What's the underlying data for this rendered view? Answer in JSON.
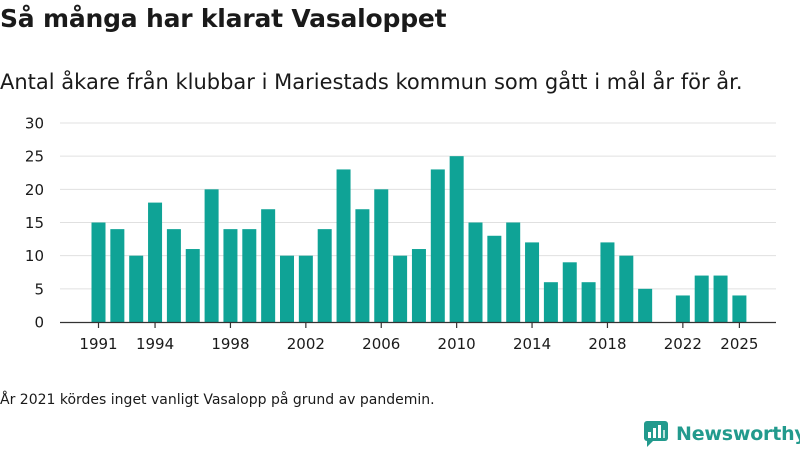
{
  "title": "Så många har klarat Vasaloppet",
  "subtitle": "Antal åkare från klubbar i Mariestads kommun som gått i mål år för år.",
  "footnote": "År 2021 kördes inget vanligt Vasalopp på grund av pandemin.",
  "brand": {
    "name": "Newsworthy",
    "color": "#229a8d"
  },
  "colors": {
    "bar": "#0fa396",
    "grid": "#e0e0e0",
    "axis": "#333333",
    "text": "#1a1a1a"
  },
  "chart_data": {
    "type": "bar",
    "title": "Så många har klarat Vasaloppet",
    "xlabel": "",
    "ylabel": "",
    "ylim": [
      0,
      30
    ],
    "yticks": [
      0,
      5,
      10,
      15,
      20,
      25,
      30
    ],
    "grid": true,
    "categories": [
      1991,
      1992,
      1993,
      1994,
      1995,
      1996,
      1997,
      1998,
      1999,
      2000,
      2001,
      2002,
      2003,
      2004,
      2005,
      2006,
      2007,
      2008,
      2009,
      2010,
      2011,
      2012,
      2013,
      2014,
      2015,
      2016,
      2017,
      2018,
      2019,
      2020,
      2021,
      2022,
      2023,
      2024,
      2025
    ],
    "values": [
      15,
      14,
      10,
      18,
      14,
      11,
      20,
      14,
      14,
      17,
      10,
      10,
      14,
      23,
      17,
      20,
      10,
      11,
      23,
      25,
      15,
      13,
      15,
      12,
      6,
      9,
      6,
      12,
      10,
      5,
      null,
      4,
      7,
      7,
      4
    ],
    "xtick_labels": [
      "1991",
      "1994",
      "1998",
      "2002",
      "2006",
      "2010",
      "2014",
      "2018",
      "2022",
      "2025"
    ]
  }
}
